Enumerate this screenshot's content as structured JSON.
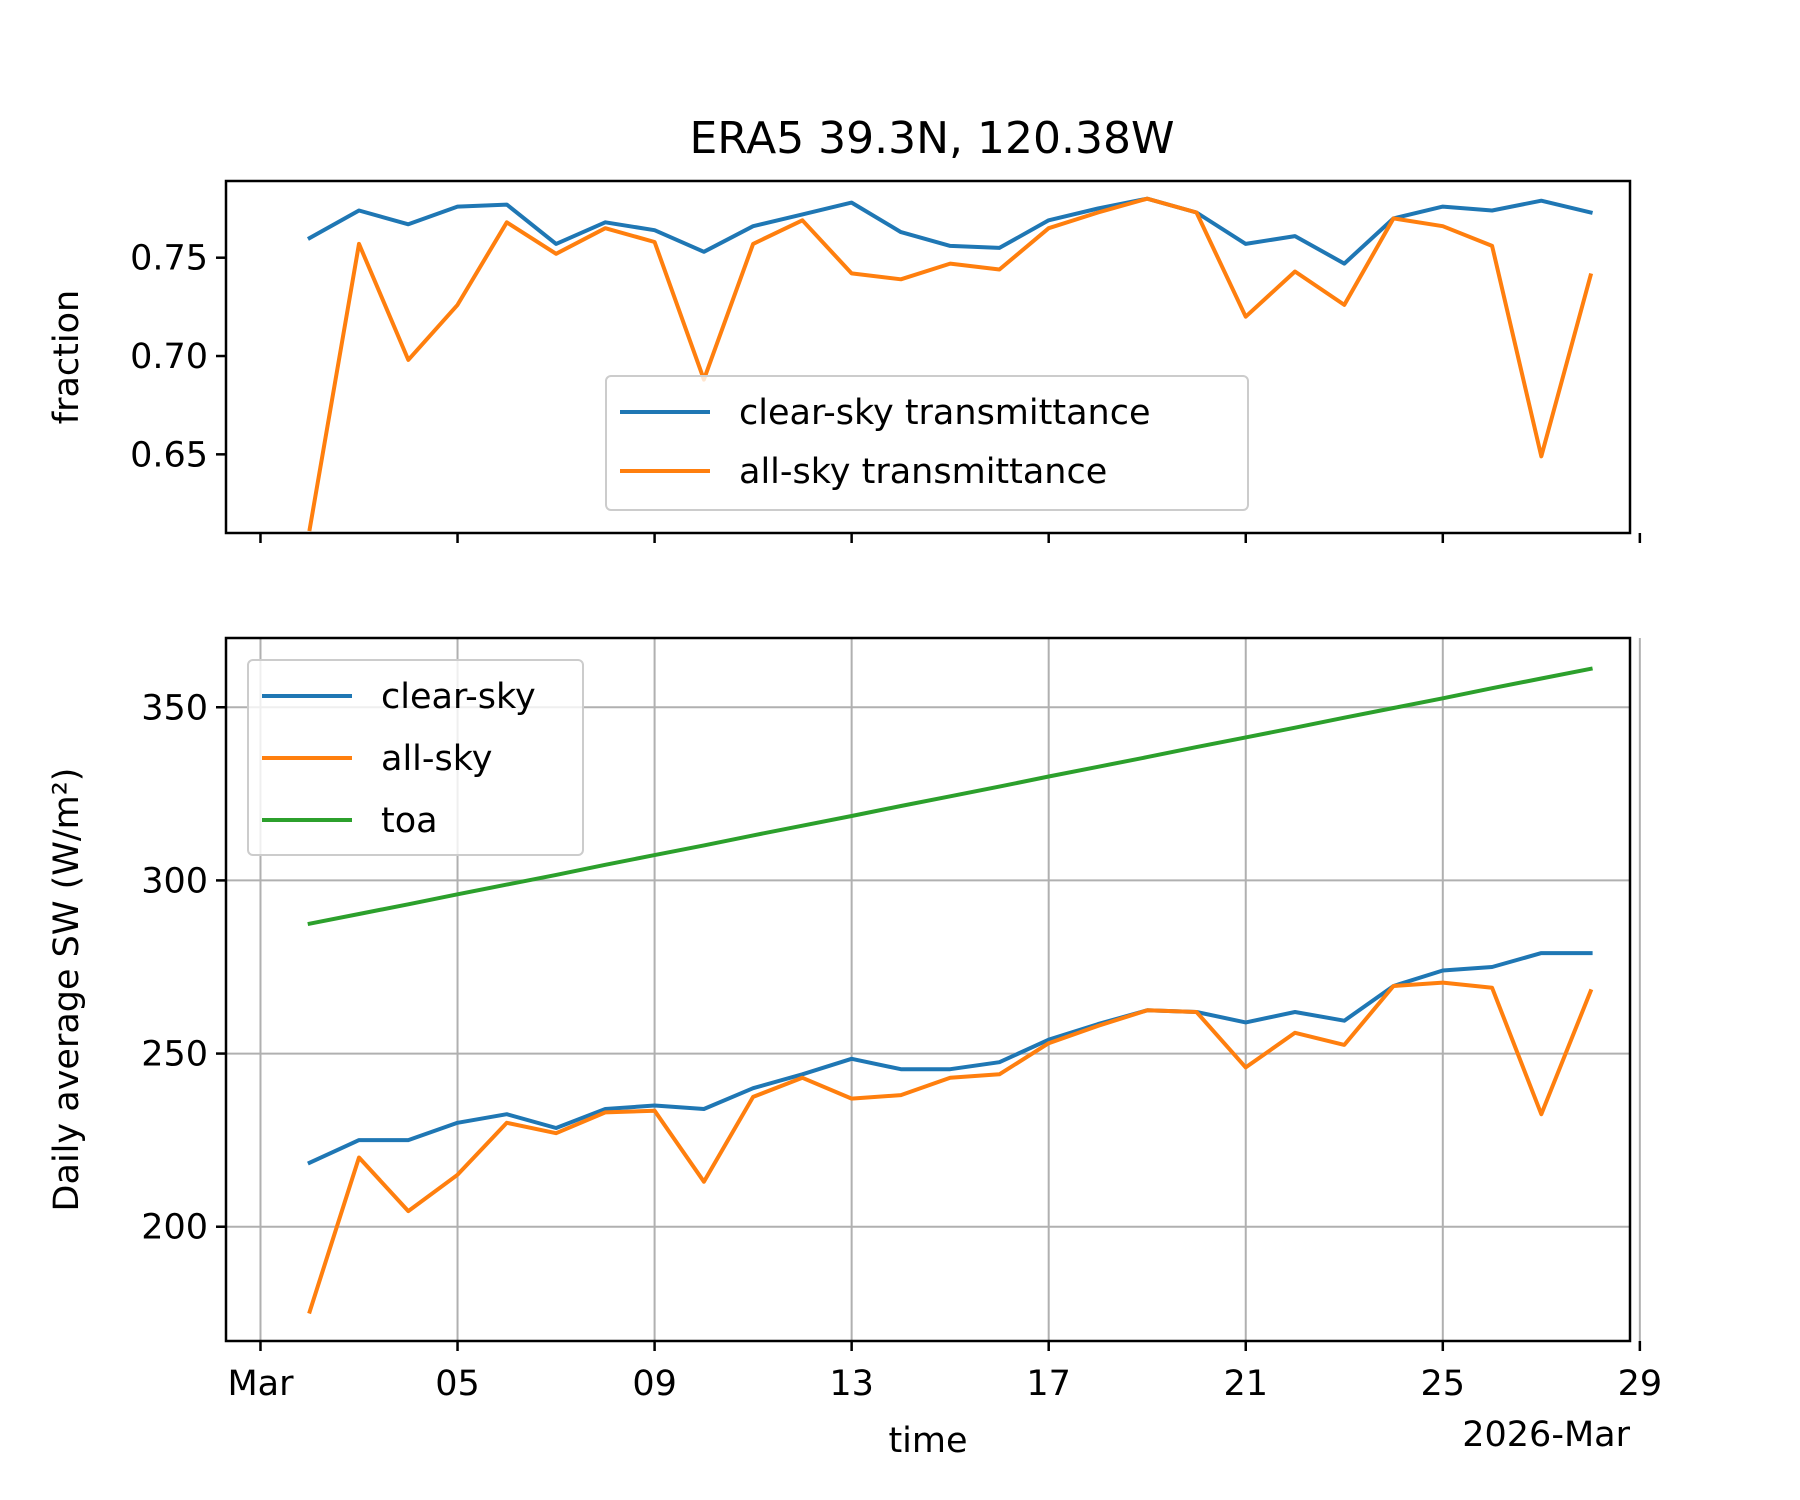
{
  "figure": {
    "title": "ERA5 39.3N, 120.38W"
  },
  "chart_data": [
    {
      "type": "line",
      "panel": "top",
      "title": "ERA5 39.3N, 120.38W",
      "ylabel": "fraction",
      "xlabel": "",
      "ylim": [
        0.61,
        0.789
      ],
      "yticks": [
        0.65,
        0.7,
        0.75
      ],
      "ytick_labels": [
        "0.65",
        "0.70",
        "0.75"
      ],
      "xlim": [
        0.3,
        28.8
      ],
      "xticks": [
        1,
        5,
        9,
        13,
        17,
        21,
        25,
        29
      ],
      "grid": false,
      "legend_position": "lower-center",
      "x": [
        2,
        3,
        4,
        5,
        6,
        7,
        8,
        9,
        10,
        11,
        12,
        13,
        14,
        15,
        16,
        17,
        18,
        19,
        20,
        21,
        22,
        23,
        24,
        25,
        26,
        27,
        28
      ],
      "series": [
        {
          "name": "clear-sky transmittance",
          "color": "#1f77b4",
          "values": [
            0.76,
            0.774,
            0.767,
            0.776,
            0.777,
            0.757,
            0.768,
            0.764,
            0.753,
            0.766,
            0.772,
            0.778,
            0.763,
            0.756,
            0.755,
            0.769,
            0.775,
            0.78,
            0.773,
            0.757,
            0.761,
            0.747,
            0.77,
            0.776,
            0.774,
            0.779,
            0.773
          ]
        },
        {
          "name": "all-sky transmittance",
          "color": "#ff7f0e",
          "values": [
            0.612,
            0.757,
            0.698,
            0.726,
            0.768,
            0.752,
            0.765,
            0.758,
            0.688,
            0.757,
            0.769,
            0.742,
            0.739,
            0.747,
            0.744,
            0.765,
            0.773,
            0.78,
            0.773,
            0.72,
            0.743,
            0.726,
            0.77,
            0.766,
            0.756,
            0.649,
            0.741
          ]
        }
      ]
    },
    {
      "type": "line",
      "panel": "bottom",
      "title": "",
      "ylabel": "Daily average SW (W/m²)",
      "xlabel": "time",
      "ylim": [
        167,
        370
      ],
      "yticks": [
        200,
        250,
        300,
        350
      ],
      "ytick_labels": [
        "200",
        "250",
        "300",
        "350"
      ],
      "xlim": [
        0.3,
        28.8
      ],
      "xticks": [
        1,
        5,
        9,
        13,
        17,
        21,
        25,
        29
      ],
      "xtick_labels": [
        "Mar",
        "05",
        "09",
        "13",
        "17",
        "21",
        "25",
        "29"
      ],
      "x_offset_label": "2026-Mar",
      "grid": true,
      "legend_position": "top-left",
      "x": [
        2,
        3,
        4,
        5,
        6,
        7,
        8,
        9,
        10,
        11,
        12,
        13,
        14,
        15,
        16,
        17,
        18,
        19,
        20,
        21,
        22,
        23,
        24,
        25,
        26,
        27,
        28
      ],
      "series": [
        {
          "name": "clear-sky",
          "color": "#1f77b4",
          "values": [
            218.5,
            225,
            225,
            230,
            232.5,
            228.5,
            234,
            235,
            234,
            240,
            244,
            248.5,
            245.5,
            245.5,
            247.5,
            254,
            258.5,
            262.5,
            262,
            259,
            262,
            259.5,
            269.5,
            274,
            275,
            279,
            279
          ]
        },
        {
          "name": "all-sky",
          "color": "#ff7f0e",
          "values": [
            175.5,
            220,
            204.5,
            215,
            230,
            227,
            233,
            233.5,
            213,
            237.5,
            243,
            237,
            238,
            243,
            244,
            253,
            258,
            262.5,
            262,
            246,
            256,
            252.5,
            269.5,
            270.5,
            269,
            232.5,
            268
          ]
        },
        {
          "name": "toa",
          "color": "#2ca02c",
          "values": [
            287.5,
            290.3,
            293.1,
            296.0,
            298.8,
            301.6,
            304.5,
            307.3,
            310.1,
            313.0,
            315.8,
            318.6,
            321.5,
            324.3,
            327.1,
            330.0,
            332.8,
            335.6,
            338.5,
            341.3,
            344.1,
            347.0,
            349.8,
            352.6,
            355.5,
            358.3,
            361.1
          ]
        }
      ]
    }
  ]
}
